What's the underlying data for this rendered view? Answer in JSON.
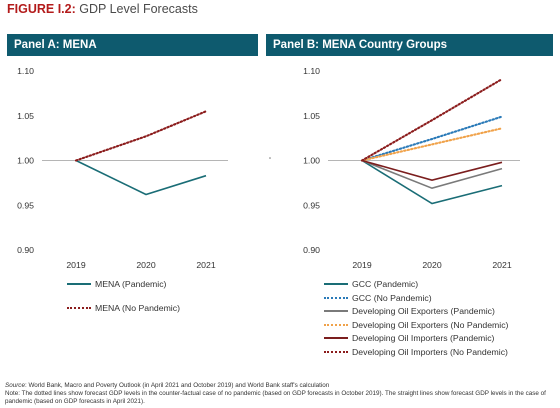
{
  "figure": {
    "label": "FIGURE I.2:",
    "title": "GDP Level Forecasts"
  },
  "panels": {
    "a_title": "Panel A: MENA",
    "b_title": "Panel B: MENA Country Groups"
  },
  "colors": {
    "teal": "#1a6d76",
    "blue_dot": "#2a7ab8",
    "gray": "#7a7a7a",
    "orange_dot": "#f0a24a",
    "maroon": "#7b1e1e",
    "maroon_dot": "#8b1c1c",
    "header_bg": "#0e5a6e",
    "title_red": "#b31b1b"
  },
  "chart_data": [
    {
      "type": "line",
      "title": "Panel A: MENA",
      "x": [
        "2019",
        "2020",
        "2021"
      ],
      "ylim": [
        0.9,
        1.1
      ],
      "yticks": [
        "0.90",
        "0.95",
        "1.00",
        "1.05",
        "1.10"
      ],
      "series": [
        {
          "name": "MENA (Pandemic)",
          "values": [
            1.0,
            0.962,
            0.983
          ],
          "style": "solid",
          "color": "#1a6d76"
        },
        {
          "name": "MENA (No Pandemic)",
          "values": [
            1.0,
            1.027,
            1.055
          ],
          "style": "dotted",
          "color": "#8b1c1c"
        }
      ]
    },
    {
      "type": "line",
      "title": "Panel B: MENA Country Groups",
      "x": [
        "2019",
        "2020",
        "2021"
      ],
      "ylim": [
        0.9,
        1.1
      ],
      "yticks": [
        "0.90",
        "0.95",
        "1.00",
        "1.05",
        "1.10"
      ],
      "series": [
        {
          "name": "GCC (Pandemic)",
          "values": [
            1.0,
            0.952,
            0.972
          ],
          "style": "solid",
          "color": "#1a6d76"
        },
        {
          "name": "GCC (No Pandemic)",
          "values": [
            1.0,
            1.024,
            1.049
          ],
          "style": "dotted",
          "color": "#2a7ab8"
        },
        {
          "name": "Developing Oil Exporters (Pandemic)",
          "values": [
            1.0,
            0.969,
            0.991
          ],
          "style": "solid",
          "color": "#7a7a7a"
        },
        {
          "name": "Developing Oil Exporters (No Pandemic)",
          "values": [
            1.0,
            1.018,
            1.036
          ],
          "style": "dotted",
          "color": "#f0a24a"
        },
        {
          "name": "Developing Oil Importers (Pandemic)",
          "values": [
            1.0,
            0.978,
            0.998
          ],
          "style": "solid",
          "color": "#7b1e1e"
        },
        {
          "name": "Developing Oil Importers (No Pandemic)",
          "values": [
            1.0,
            1.045,
            1.091
          ],
          "style": "dotted",
          "color": "#8b1c1c"
        }
      ]
    }
  ],
  "footer": {
    "source_label": "Source",
    "source_text": ": World Bank, Macro and Poverty Outlook (in April 2021 and October 2019) and World Bank staff's calculation",
    "note_text": "Note: The dotted lines show forecast GDP levels in the counter-factual case of no pandemic (based on GDP forecasts in October 2019). The straight lines show forecast GDP levels in the case of",
    "note_text_2": "pandemic (based on GDP forecasts in April 2021)."
  }
}
